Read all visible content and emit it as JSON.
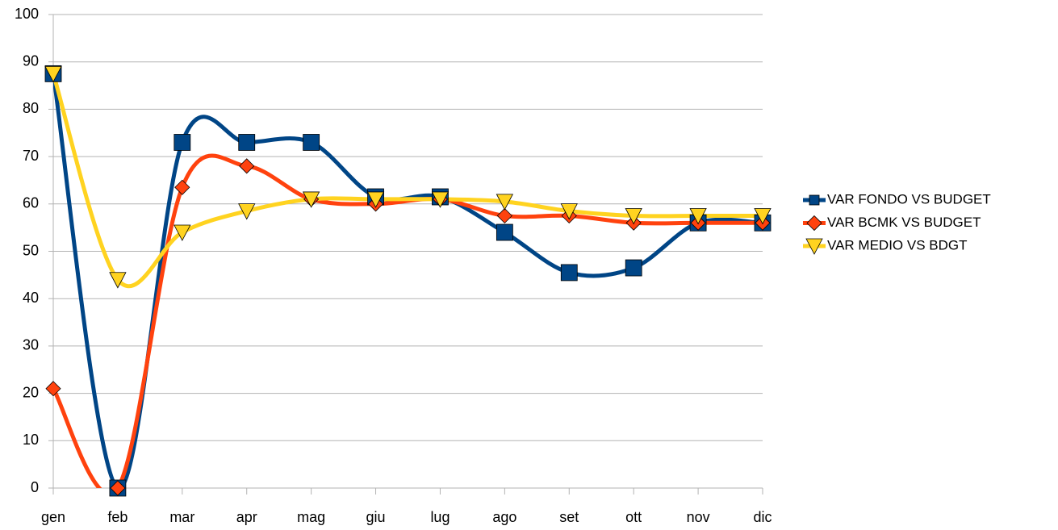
{
  "chart_data": {
    "type": "line",
    "smooth": true,
    "legend": "right",
    "grid": true,
    "categories": [
      "gen",
      "feb",
      "mar",
      "apr",
      "mag",
      "giu",
      "lug",
      "ago",
      "set",
      "ott",
      "nov",
      "dic"
    ],
    "ylim": [
      0,
      100
    ],
    "yticks": [
      0,
      10,
      20,
      30,
      40,
      50,
      60,
      70,
      80,
      90,
      100
    ],
    "series": [
      {
        "name": "VAR FONDO VS BUDGET",
        "color": "#004586",
        "marker": "square",
        "values": [
          87.5,
          0,
          73,
          73,
          73,
          61.5,
          61.5,
          54,
          45.5,
          46.5,
          56,
          56
        ]
      },
      {
        "name": "VAR BCMK VS BUDGET",
        "color": "#ff420e",
        "marker": "diamond",
        "values": [
          21,
          0,
          63.5,
          68,
          61,
          60,
          61,
          57.5,
          57.5,
          56,
          56,
          56
        ]
      },
      {
        "name": "VAR MEDIO VS BDGT",
        "color": "#ffd320",
        "marker": "triangle-down",
        "values": [
          87.5,
          44,
          54,
          58.5,
          61,
          61,
          61,
          60.5,
          58.5,
          57.5,
          57.5,
          57.5
        ]
      }
    ]
  }
}
